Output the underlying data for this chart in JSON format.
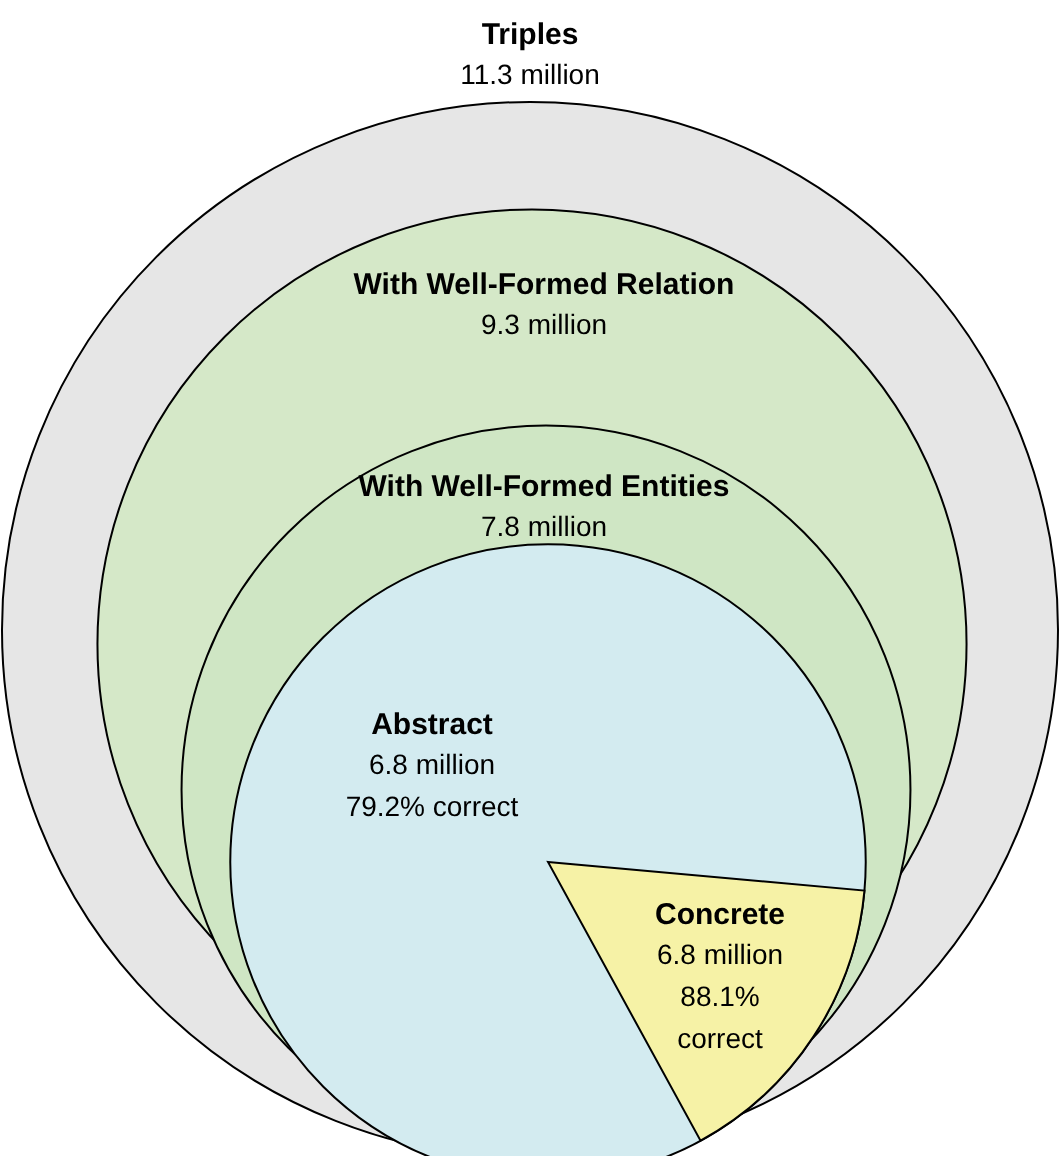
{
  "chart_data": {
    "type": "other",
    "categories": [
      "Triples",
      "With Well-Formed Relation",
      "With Well-Formed Entities",
      "Abstract",
      "Concrete"
    ],
    "values": [
      11.3,
      9.3,
      7.8,
      6.8,
      6.8
    ],
    "value_labels": [
      "11.3 million",
      "9.3 million",
      "7.8 million",
      "6.8 million",
      "6.8 million"
    ],
    "colors": [
      "#e6e6e6",
      "#d5e8c8",
      "#cfe6c4",
      "#d3ebf0",
      "#f6f2a6"
    ],
    "annotations": [
      "79.2% correct",
      "88.1% correct"
    ]
  }
}
